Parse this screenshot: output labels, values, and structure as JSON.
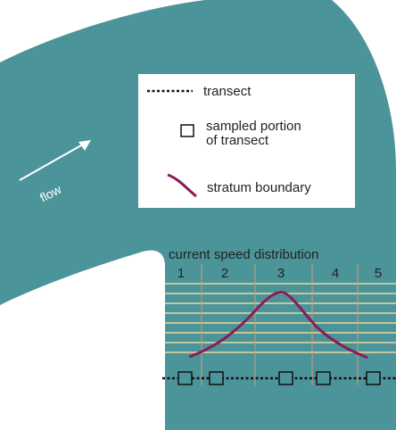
{
  "legend": {
    "transect": "transect",
    "sampled": [
      "sampled portion",
      "of transect"
    ],
    "stratum_boundary": "stratum boundary"
  },
  "flow_label": "flow",
  "distribution": {
    "title": "current speed distribution",
    "strata": [
      "1",
      "2",
      "3",
      "4",
      "5"
    ]
  }
}
